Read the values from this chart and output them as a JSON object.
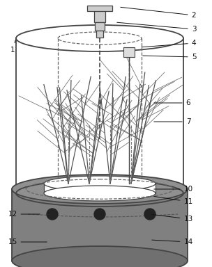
{
  "fig_width": 3.04,
  "fig_height": 3.84,
  "dpi": 100,
  "bg_color": "#ffffff",
  "edge_color": "#444444",
  "soil_color": "#808080",
  "line_color": "#444444"
}
